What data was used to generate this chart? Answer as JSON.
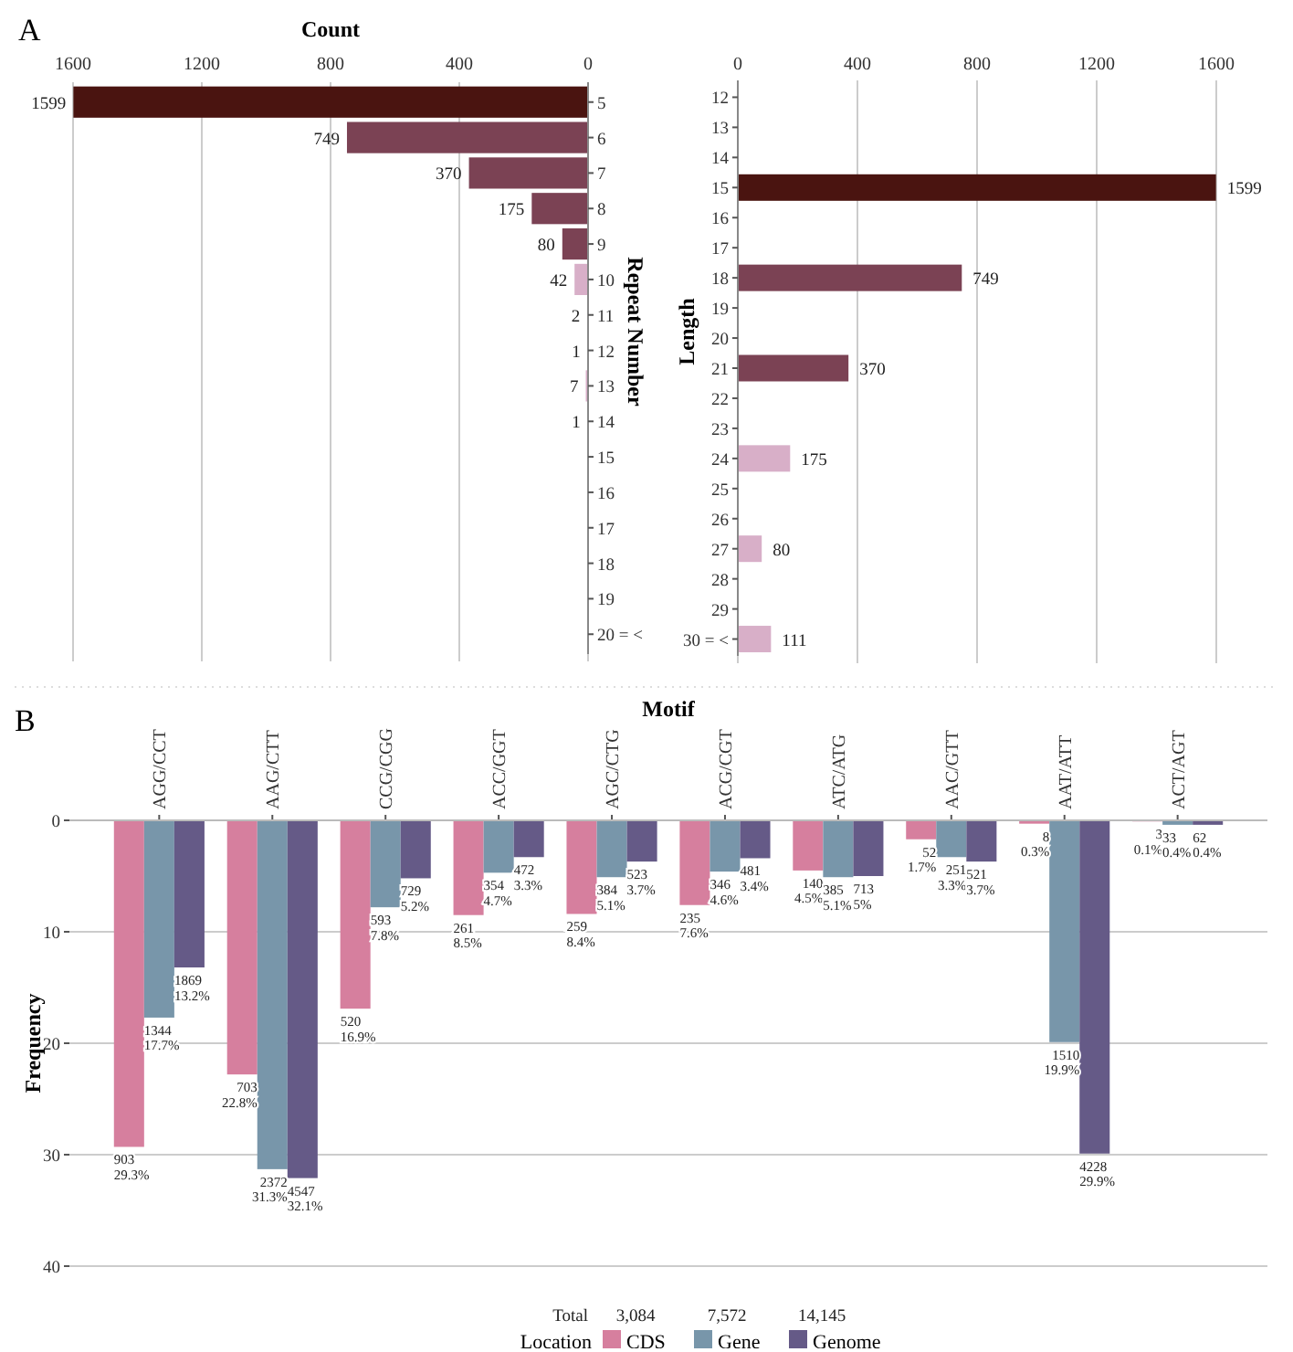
{
  "chart_data": [
    {
      "type": "bar",
      "orientation": "horizontal",
      "title": "A",
      "xlabel": "Count",
      "ylabel": "Repeat Number",
      "categories": [
        "5",
        "6",
        "7",
        "8",
        "9",
        "10",
        "11",
        "12",
        "13",
        "14",
        "15",
        "16",
        "17",
        "18",
        "19",
        "20 = <"
      ],
      "values": [
        1599,
        749,
        370,
        175,
        80,
        42,
        2,
        1,
        7,
        1,
        null,
        null,
        null,
        null,
        null,
        null
      ],
      "colors": [
        "#4a1410",
        "#7b4254",
        "#7b4254",
        "#7b4254",
        "#7b4254",
        "#d8afc8",
        "#7b4254",
        "#d8afc8",
        "#d8afc8",
        "#d8afc8",
        null,
        null,
        null,
        null,
        null,
        null
      ],
      "xlim": [
        1600,
        0
      ],
      "xticks": [
        1600,
        1200,
        800,
        400,
        0
      ],
      "grid": "x",
      "data_labels": true
    },
    {
      "type": "bar",
      "orientation": "horizontal",
      "ylabel": "Length",
      "categories": [
        "12",
        "13",
        "14",
        "15",
        "16",
        "17",
        "18",
        "19",
        "20",
        "21",
        "22",
        "23",
        "24",
        "25",
        "26",
        "27",
        "28",
        "29",
        "30 = <"
      ],
      "values": [
        null,
        null,
        null,
        1599,
        null,
        null,
        749,
        null,
        null,
        370,
        null,
        null,
        175,
        null,
        null,
        80,
        null,
        null,
        111
      ],
      "colors": [
        null,
        null,
        null,
        "#4a1410",
        null,
        null,
        "#7b4254",
        null,
        null,
        "#7b4254",
        null,
        null,
        "#d8afc8",
        null,
        null,
        "#d8afc8",
        null,
        null,
        "#d8afc8"
      ],
      "xlim": [
        0,
        1600
      ],
      "xticks": [
        0,
        400,
        800,
        1200,
        1600
      ],
      "grid": "x",
      "data_labels": true
    },
    {
      "type": "bar",
      "title": "B",
      "xlabel": "Motif",
      "ylabel": "Frequency",
      "legend_title": "Location",
      "legend": "bottom",
      "grid": "y",
      "categories": [
        "AGG/CCT",
        "AAG/CTT",
        "CCG/CGG",
        "ACC/GGT",
        "AGC/CTG",
        "ACG/CGT",
        "ATC/ATG",
        "AAC/GTT",
        "AAT/ATT",
        "ACT/AGT"
      ],
      "ylim": [
        40,
        0
      ],
      "yticks": [
        0,
        10,
        20,
        30,
        40
      ],
      "annotations": [
        "Total",
        "3,084",
        "7,572",
        "14,145"
      ],
      "series": [
        {
          "name": "CDS",
          "color": "#d67f9e",
          "values": [
            29.3,
            22.8,
            16.9,
            8.5,
            8.4,
            7.6,
            4.5,
            1.7,
            0.3,
            0.1
          ],
          "value_labels": [
            "903\n29.3%",
            "703\n22.8%",
            "520\n16.9%",
            "261\n8.5%",
            "259\n8.4%",
            "235\n7.6%",
            "140\n4.5%",
            "52\n1.7%",
            "8\n0.3%",
            "3\n0.1%"
          ]
        },
        {
          "name": "Gene",
          "color": "#7896aa",
          "values": [
            17.7,
            31.3,
            7.8,
            4.7,
            5.1,
            4.6,
            5.1,
            3.3,
            19.9,
            0.4
          ],
          "value_labels": [
            "1344\n17.7%",
            "2372\n31.3%",
            "593\n7.8%",
            "354\n4.7%",
            "384\n5.1%",
            "346\n4.6%",
            "385\n5.1%",
            "251\n3.3%",
            "1510\n19.9%",
            "33\n0.4%"
          ]
        },
        {
          "name": "Genome",
          "color": "#655a87",
          "values": [
            13.2,
            32.1,
            5.2,
            3.3,
            3.7,
            3.4,
            5,
            3.7,
            29.9,
            0.4
          ],
          "value_labels": [
            "1869\n13.2%",
            "4547\n32.1%",
            "729\n5.2%",
            "472\n3.3%",
            "523\n3.7%",
            "481\n3.4%",
            "713\n5%",
            "521\n3.7%",
            "4228\n29.9%",
            "62\n0.4%"
          ]
        }
      ]
    }
  ]
}
